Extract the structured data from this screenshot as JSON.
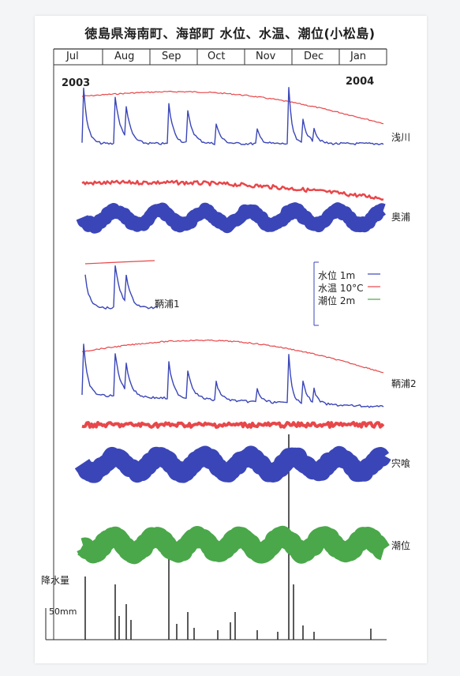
{
  "title": "徳島県海南町、海部町 水位、水温、潮位(小松島)",
  "colors": {
    "water_level": "#3a46b8",
    "water_temp": "#e8474a",
    "tide": "#4aa84a",
    "rain": "#222222",
    "axis": "#333333"
  },
  "chart_data": {
    "type": "line",
    "title": "徳島県海南町、海部町 水位、水温、潮位(小松島)",
    "x_ticks": [
      "Jul",
      "Aug",
      "Sep",
      "Oct",
      "Nov",
      "Dec",
      "Jan"
    ],
    "year_labels": {
      "start": "2003",
      "end": "2004"
    },
    "legend": {
      "placement": "center-right",
      "entries": [
        {
          "label": "水位",
          "scale": "1m"
        },
        {
          "label": "水温",
          "scale": "10°C"
        },
        {
          "label": "潮位",
          "scale": "2m"
        }
      ]
    },
    "stations": [
      {
        "name": "浅川",
        "series": [
          "水位",
          "水温"
        ]
      },
      {
        "name": "奥浦",
        "series": [
          "水位",
          "水温"
        ]
      },
      {
        "name": "鞆浦1",
        "series": [
          "水位",
          "水温"
        ]
      },
      {
        "name": "鞆浦2",
        "series": [
          "水位",
          "水温"
        ]
      },
      {
        "name": "宍喰",
        "series": [
          "水位",
          "水温"
        ]
      },
      {
        "name": "潮位",
        "series": [
          "潮位"
        ]
      }
    ],
    "rain": {
      "label": "降水量",
      "scale": "50mm"
    }
  }
}
